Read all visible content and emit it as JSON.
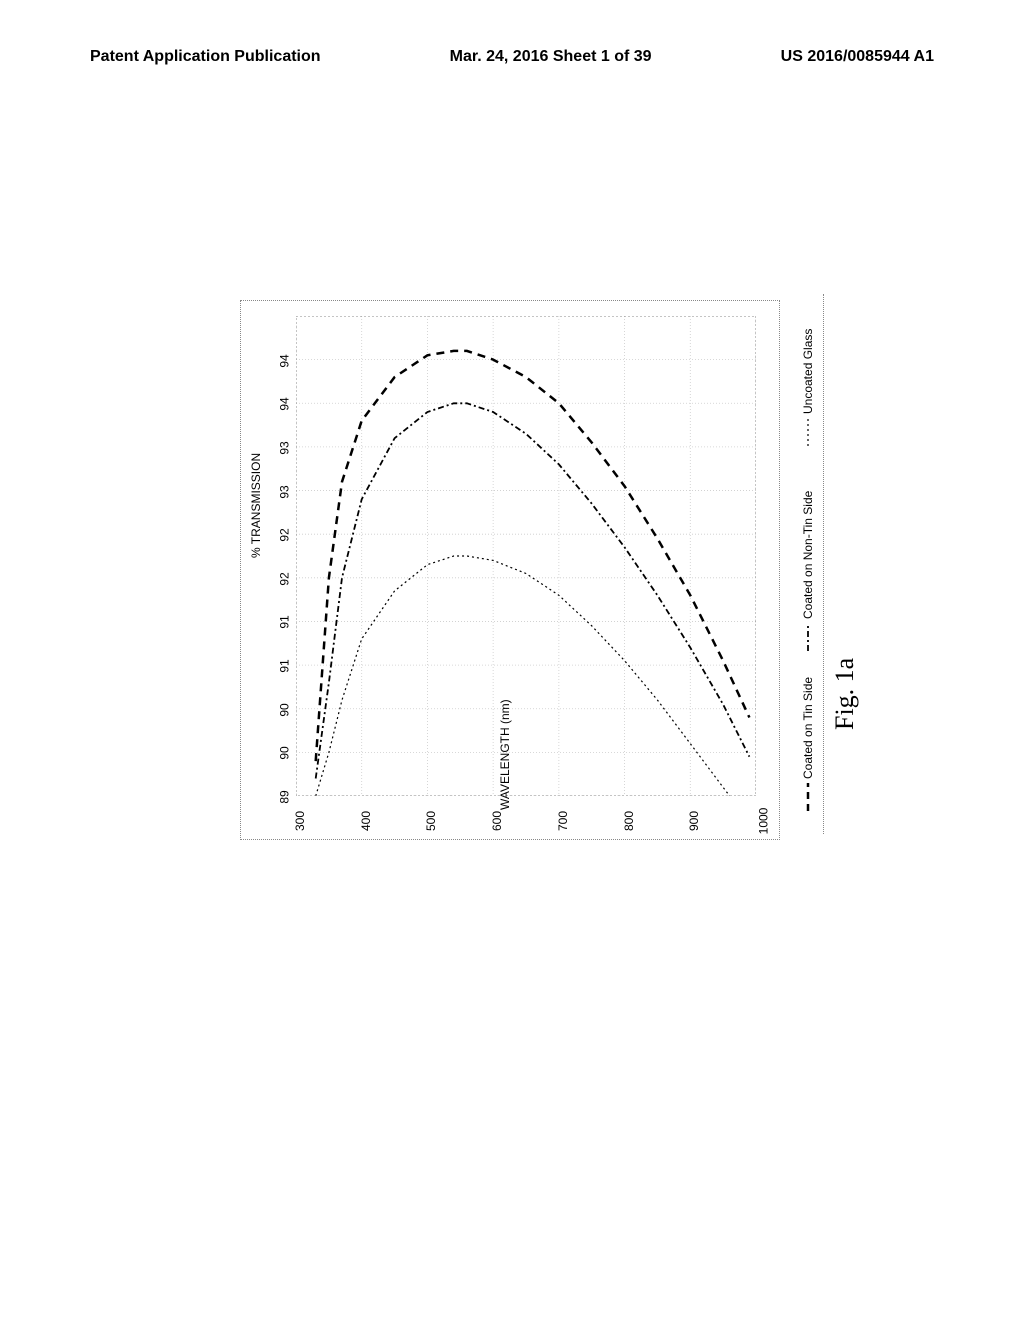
{
  "header": {
    "left": "Patent Application Publication",
    "center": "Mar. 24, 2016  Sheet 1 of 39",
    "right": "US 2016/0085944 A1"
  },
  "figure_caption": "Fig. 1a",
  "chart": {
    "type": "line",
    "x_axis": {
      "label": "WAVELENGTH (nm)",
      "min": 300,
      "max": 1000,
      "tick_step": 100,
      "ticks": [
        300,
        400,
        500,
        600,
        700,
        800,
        900,
        1000
      ]
    },
    "y_axis": {
      "label": "% TRANSMISSION",
      "min": 89,
      "max": 94.5,
      "ticks": [
        89,
        90,
        90,
        91,
        91,
        92,
        92,
        93,
        93,
        94,
        94
      ],
      "tick_values": [
        89,
        89.5,
        90,
        90.5,
        91,
        91.5,
        92,
        92.5,
        93,
        93.5,
        94
      ]
    },
    "grid_color": "#cccccc",
    "background_color": "#ffffff",
    "border_style": "dotted",
    "series": [
      {
        "name": "Coated on Tin Side",
        "dash": "8,6",
        "width": 2.5,
        "color": "#000000",
        "points": [
          [
            330,
            89.4
          ],
          [
            350,
            91.5
          ],
          [
            370,
            92.6
          ],
          [
            400,
            93.3
          ],
          [
            450,
            93.8
          ],
          [
            500,
            94.05
          ],
          [
            540,
            94.1
          ],
          [
            560,
            94.1
          ],
          [
            600,
            94.0
          ],
          [
            650,
            93.8
          ],
          [
            700,
            93.5
          ],
          [
            750,
            93.05
          ],
          [
            800,
            92.55
          ],
          [
            850,
            91.95
          ],
          [
            900,
            91.3
          ],
          [
            950,
            90.55
          ],
          [
            990,
            89.9
          ]
        ]
      },
      {
        "name": "Coated on Non-Tin Side",
        "dash": "6,3,2,3",
        "width": 1.8,
        "color": "#000000",
        "points": [
          [
            330,
            89.2
          ],
          [
            350,
            90.3
          ],
          [
            370,
            91.5
          ],
          [
            400,
            92.4
          ],
          [
            450,
            93.1
          ],
          [
            500,
            93.4
          ],
          [
            540,
            93.5
          ],
          [
            560,
            93.5
          ],
          [
            600,
            93.4
          ],
          [
            650,
            93.15
          ],
          [
            700,
            92.8
          ],
          [
            750,
            92.35
          ],
          [
            800,
            91.85
          ],
          [
            850,
            91.3
          ],
          [
            900,
            90.7
          ],
          [
            950,
            90.05
          ],
          [
            990,
            89.45
          ]
        ]
      },
      {
        "name": "Uncoated Glass",
        "dash": "2,3",
        "width": 1.2,
        "color": "#000000",
        "points": [
          [
            330,
            89.0
          ],
          [
            350,
            89.5
          ],
          [
            370,
            90.1
          ],
          [
            400,
            90.8
          ],
          [
            450,
            91.35
          ],
          [
            500,
            91.65
          ],
          [
            540,
            91.75
          ],
          [
            560,
            91.75
          ],
          [
            600,
            91.7
          ],
          [
            650,
            91.55
          ],
          [
            700,
            91.3
          ],
          [
            750,
            90.95
          ],
          [
            800,
            90.55
          ],
          [
            850,
            90.1
          ],
          [
            900,
            89.6
          ],
          [
            950,
            89.1
          ],
          [
            1000,
            88.6
          ]
        ]
      }
    ],
    "legend": {
      "position": "right-vertical"
    }
  }
}
